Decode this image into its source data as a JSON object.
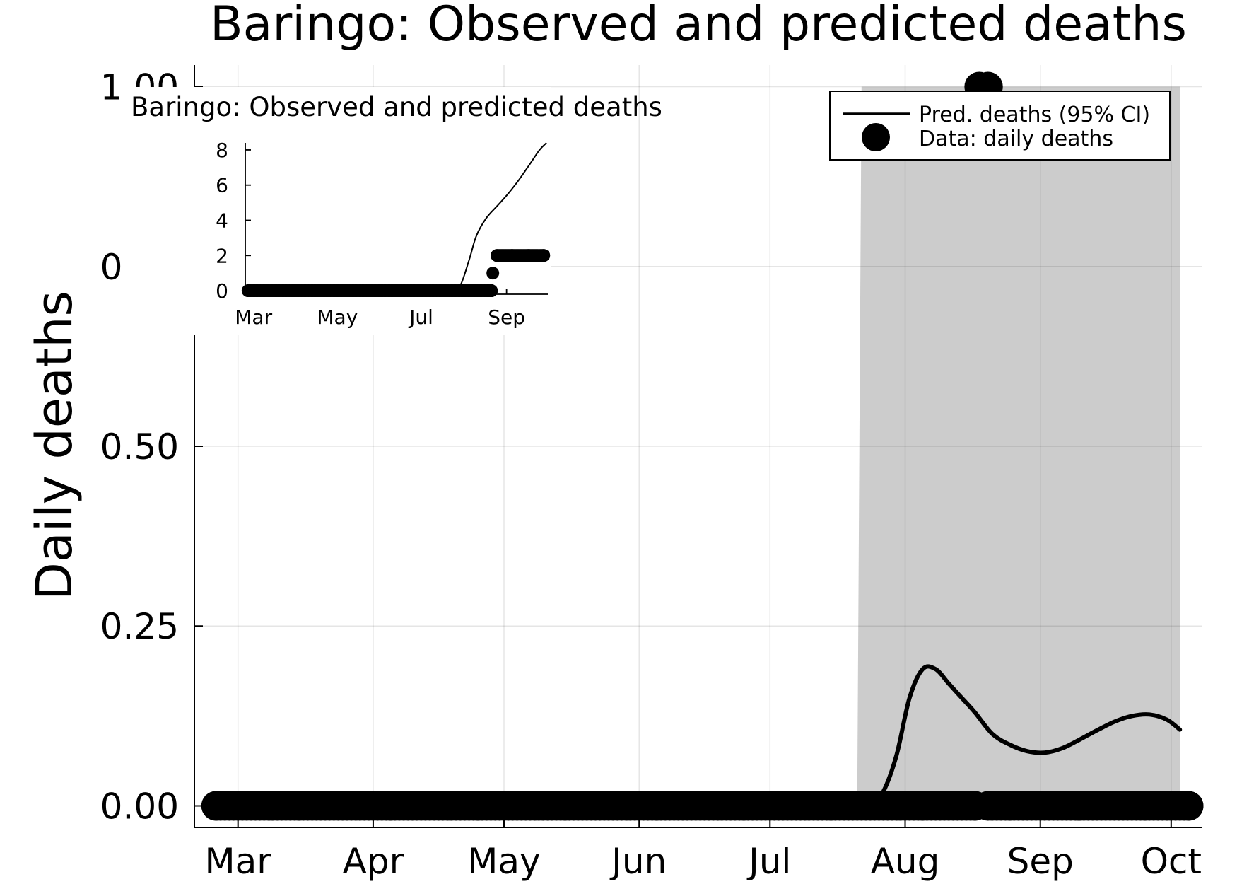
{
  "chart_data": [
    {
      "type": "line",
      "title": "Baringo: Observed and predicted deaths",
      "xlabel": "",
      "ylabel": "Daily deaths",
      "xlim": [
        "2020-02-20",
        "2020-10-08"
      ],
      "ylim": [
        -0.03,
        1.03
      ],
      "x_ticks": [
        "Mar",
        "Apr",
        "May",
        "Jun",
        "Jul",
        "Aug",
        "Sep",
        "Oct"
      ],
      "y_ticks": [
        "0.00",
        "0.25",
        "0.50",
        "0.75",
        "1.00"
      ],
      "grid": true,
      "legend_position": "top-right",
      "legend": [
        "Pred. deaths (95% CI)",
        "Data: daily deaths"
      ],
      "series": [
        {
          "name": "Pred. deaths (95% CI)",
          "kind": "line",
          "x": [
            "2020-07-24",
            "2020-07-27",
            "2020-07-30",
            "2020-08-02",
            "2020-08-05",
            "2020-08-08",
            "2020-08-11",
            "2020-08-14",
            "2020-08-17",
            "2020-08-21",
            "2020-08-25",
            "2020-08-29",
            "2020-09-02",
            "2020-09-06",
            "2020-09-10",
            "2020-09-14",
            "2020-09-18",
            "2020-09-22",
            "2020-09-26",
            "2020-09-30",
            "2020-10-03"
          ],
          "y": [
            0.0,
            0.02,
            0.07,
            0.15,
            0.19,
            0.19,
            0.17,
            0.15,
            0.13,
            0.1,
            0.085,
            0.076,
            0.074,
            0.08,
            0.092,
            0.105,
            0.117,
            0.125,
            0.127,
            0.12,
            0.106
          ],
          "ci_x": [
            "2020-07-21",
            "2020-07-22",
            "2020-10-03"
          ],
          "ci_lower": [
            0.0,
            0.0,
            0.0
          ],
          "ci_upper": [
            0.0,
            1.0,
            1.0
          ]
        },
        {
          "name": "Data: daily deaths",
          "kind": "scatter",
          "x": [
            "2020-02-25",
            "2020-03-15",
            "2020-04-05",
            "2020-04-25",
            "2020-05-15",
            "2020-06-05",
            "2020-06-25",
            "2020-07-15",
            "2020-08-05",
            "2020-08-17",
            "2020-08-20",
            "2020-08-25",
            "2020-09-10",
            "2020-09-25",
            "2020-10-05",
            "2020-08-18",
            "2020-08-20"
          ],
          "y": [
            0,
            0,
            0,
            0,
            0,
            0,
            0,
            0,
            0,
            0,
            0,
            0,
            0,
            0,
            0,
            1,
            1
          ]
        }
      ]
    },
    {
      "type": "line",
      "title": "Baringo: Observed and predicted deaths",
      "xlabel": "",
      "ylabel": "",
      "xlim": [
        "2020-02-24",
        "2020-10-01"
      ],
      "ylim": [
        -0.2,
        8.4
      ],
      "x_ticks": [
        "Mar",
        "May",
        "Jul",
        "Sep"
      ],
      "y_ticks": [
        "0",
        "2",
        "4",
        "6",
        "8"
      ],
      "grid": false,
      "series": [
        {
          "kind": "line",
          "x": [
            "2020-07-25",
            "2020-07-30",
            "2020-08-05",
            "2020-08-10",
            "2020-08-17",
            "2020-08-25",
            "2020-09-02",
            "2020-09-10",
            "2020-09-18",
            "2020-09-25",
            "2020-09-30"
          ],
          "y": [
            0.0,
            0.4,
            1.8,
            3.1,
            4.1,
            4.8,
            5.5,
            6.3,
            7.2,
            8.0,
            8.4
          ]
        },
        {
          "kind": "scatter",
          "x": [
            "2020-02-26",
            "2020-03-30",
            "2020-05-01",
            "2020-06-01",
            "2020-07-01",
            "2020-08-01",
            "2020-08-21",
            "2020-08-22",
            "2020-08-25",
            "2020-09-05",
            "2020-09-17",
            "2020-09-28"
          ],
          "y": [
            0,
            0,
            0,
            0,
            0,
            0,
            0,
            1,
            2,
            2,
            2,
            2
          ]
        }
      ]
    }
  ]
}
